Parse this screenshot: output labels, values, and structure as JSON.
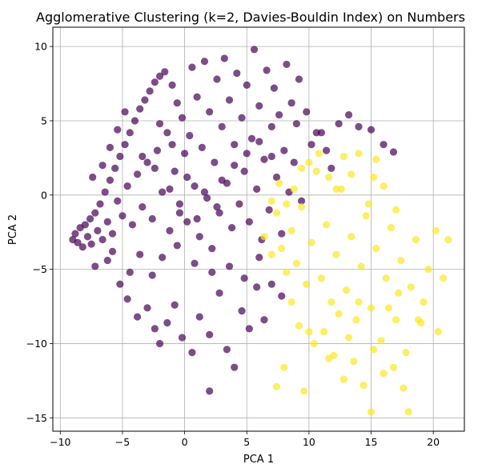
{
  "chart_data": {
    "type": "scatter",
    "title": "Agglomerative Clustering (k=2, Davies-Bouldin Index) on Numbers",
    "xlabel": "PCA 1",
    "ylabel": "PCA 2",
    "xlim": [
      -10.6,
      22.5
    ],
    "ylim": [
      -15.9,
      11.3
    ],
    "xticks": [
      -10,
      -5,
      0,
      5,
      10,
      15,
      20
    ],
    "xtick_labels": [
      "−10",
      "−5",
      "0",
      "5",
      "10",
      "15",
      "20"
    ],
    "yticks": [
      -15,
      -10,
      -5,
      0,
      5,
      10
    ],
    "ytick_labels": [
      "−15",
      "−10",
      "−5",
      "0",
      "5",
      "10"
    ],
    "grid": true,
    "legend": "none",
    "series": [
      {
        "cluster": 0,
        "color": "#440154",
        "opacity": 0.7,
        "points": [
          [
            -9,
            -3
          ],
          [
            -8.8,
            -2.6
          ],
          [
            -8.6,
            -3.2
          ],
          [
            -8.4,
            -2.2
          ],
          [
            -8.2,
            -3.5
          ],
          [
            -8,
            -2
          ],
          [
            -7.8,
            -2.8
          ],
          [
            -7.6,
            -1.6
          ],
          [
            -7.5,
            -3.3
          ],
          [
            -7.2,
            -1.2
          ],
          [
            -7,
            -2.4
          ],
          [
            -6.8,
            -0.6
          ],
          [
            -6.6,
            -3
          ],
          [
            -6.4,
            0.2
          ],
          [
            -6.2,
            -1.8
          ],
          [
            -6,
            1
          ],
          [
            -5.8,
            -2.6
          ],
          [
            -5.6,
            1.8
          ],
          [
            -5.4,
            -0.4
          ],
          [
            -5.2,
            2.6
          ],
          [
            -5,
            -1.4
          ],
          [
            -4.8,
            3.4
          ],
          [
            -4.6,
            0.6
          ],
          [
            -4.4,
            4.2
          ],
          [
            -4.2,
            -2
          ],
          [
            -4,
            5
          ],
          [
            -3.8,
            1.4
          ],
          [
            -3.6,
            5.8
          ],
          [
            -3.4,
            -0.8
          ],
          [
            -3.2,
            6.4
          ],
          [
            -3,
            2.2
          ],
          [
            -2.8,
            7
          ],
          [
            -2.6,
            -1.6
          ],
          [
            -2.4,
            7.6
          ],
          [
            -2.2,
            3
          ],
          [
            -2,
            8
          ],
          [
            -1.8,
            0.2
          ],
          [
            -1.6,
            8.3
          ],
          [
            -1.4,
            4.2
          ],
          [
            -1.2,
            -2.4
          ],
          [
            -1,
            7.4
          ],
          [
            -0.8,
            1.6
          ],
          [
            -0.6,
            6.2
          ],
          [
            -0.4,
            -0.6
          ],
          [
            -0.2,
            5.2
          ],
          [
            0,
            2.8
          ],
          [
            0.2,
            -1.8
          ],
          [
            0.4,
            4
          ],
          [
            0.6,
            8.6
          ],
          [
            0.8,
            0.6
          ],
          [
            1,
            6.6
          ],
          [
            1.2,
            -2.8
          ],
          [
            1.4,
            3.2
          ],
          [
            1.6,
            9
          ],
          [
            1.8,
            -0.2
          ],
          [
            2,
            5.6
          ],
          [
            2.2,
            -3.6
          ],
          [
            2.4,
            2.2
          ],
          [
            2.6,
            7.8
          ],
          [
            2.8,
            -1.2
          ],
          [
            3,
            4.6
          ],
          [
            3.2,
            9.2
          ],
          [
            3.4,
            0.8
          ],
          [
            3.6,
            6.4
          ],
          [
            3.8,
            -2.2
          ],
          [
            4,
            3.4
          ],
          [
            4.2,
            8.2
          ],
          [
            4.4,
            -0.6
          ],
          [
            4.6,
            5.2
          ],
          [
            4.8,
            1.6
          ],
          [
            5,
            7.4
          ],
          [
            5.2,
            -1.8
          ],
          [
            5.4,
            3.8
          ],
          [
            5.6,
            9.8
          ],
          [
            5.8,
            0.4
          ],
          [
            6,
            6
          ],
          [
            6.2,
            -3
          ],
          [
            6.4,
            2.4
          ],
          [
            6.6,
            8.4
          ],
          [
            6.8,
            -1
          ],
          [
            7,
            4.6
          ],
          [
            7.2,
            7.2
          ],
          [
            7.4,
            1.2
          ],
          [
            7.6,
            5.4
          ],
          [
            7.8,
            -2.6
          ],
          [
            8,
            3
          ],
          [
            8.2,
            8.8
          ],
          [
            8.4,
            0.2
          ],
          [
            8.6,
            6.2
          ],
          [
            8.8,
            2.2
          ],
          [
            9,
            4.8
          ],
          [
            9.2,
            7.8
          ],
          [
            9.4,
            -0.4
          ],
          [
            9.8,
            5.6
          ],
          [
            10.2,
            3.4
          ],
          [
            10.6,
            4.2
          ],
          [
            11,
            4.2
          ],
          [
            11.4,
            3
          ],
          [
            11.8,
            1.8
          ],
          [
            12.4,
            4.8
          ],
          [
            13.2,
            5.4
          ],
          [
            14,
            4.6
          ],
          [
            15,
            4.4
          ],
          [
            16,
            3.4
          ],
          [
            16.8,
            2.9
          ],
          [
            -5.2,
            -6
          ],
          [
            -4.6,
            -7
          ],
          [
            -3.8,
            -8.2
          ],
          [
            -3,
            -7.6
          ],
          [
            -2.4,
            -9
          ],
          [
            -2,
            -10
          ],
          [
            -1.4,
            -8.6
          ],
          [
            -0.8,
            -7.4
          ],
          [
            -0.2,
            -9.6
          ],
          [
            0.6,
            -10.6
          ],
          [
            1.2,
            -8.2
          ],
          [
            2,
            -9.4
          ],
          [
            2.8,
            -6.6
          ],
          [
            3.4,
            -10.4
          ],
          [
            4,
            -11.6
          ],
          [
            4.6,
            -7.8
          ],
          [
            5.2,
            -9
          ],
          [
            5.8,
            -6.2
          ],
          [
            6.4,
            -8.4
          ],
          [
            7,
            -6
          ],
          [
            7.8,
            -6.8
          ],
          [
            2,
            -13.2
          ],
          [
            -6.2,
            -4.4
          ],
          [
            -7.2,
            -4.8
          ],
          [
            -5.8,
            -3.8
          ],
          [
            -1.8,
            -4.2
          ],
          [
            -0.6,
            -3.4
          ],
          [
            0.8,
            -4.6
          ],
          [
            2.2,
            -5.2
          ],
          [
            3.6,
            -4.8
          ],
          [
            4.8,
            -5.6
          ],
          [
            6,
            -4.2
          ],
          [
            -2.6,
            -5.4
          ],
          [
            -3.6,
            -4
          ],
          [
            -4.4,
            -5.2
          ],
          [
            -6.6,
            2
          ],
          [
            -7.4,
            1.2
          ],
          [
            -6,
            3.2
          ],
          [
            -5.4,
            4.4
          ],
          [
            -4.8,
            5.6
          ],
          [
            -2,
            4.8
          ],
          [
            -1,
            3.4
          ],
          [
            0.2,
            1.2
          ],
          [
            1.6,
            0.2
          ],
          [
            2.6,
            -0.8
          ],
          [
            -3.4,
            2.6
          ],
          [
            -2.4,
            1.8
          ],
          [
            -1.2,
            0.4
          ],
          [
            -0.4,
            -1.2
          ],
          [
            1,
            -1.6
          ],
          [
            3,
            1
          ],
          [
            4,
            2
          ],
          [
            5,
            2.8
          ],
          [
            6,
            3.6
          ],
          [
            7,
            2.6
          ]
        ]
      },
      {
        "cluster": 1,
        "color": "#fde725",
        "opacity": 0.7,
        "points": [
          [
            6.4,
            -2.8
          ],
          [
            7,
            -4
          ],
          [
            7.4,
            -1.2
          ],
          [
            7.8,
            -3.6
          ],
          [
            8.2,
            -5.2
          ],
          [
            8.6,
            -2.4
          ],
          [
            9,
            -4.6
          ],
          [
            9.4,
            -0.8
          ],
          [
            9.8,
            -6
          ],
          [
            10.2,
            -3.2
          ],
          [
            10.6,
            1.6
          ],
          [
            11,
            -5.6
          ],
          [
            11.4,
            -2
          ],
          [
            11.8,
            -7.2
          ],
          [
            12.2,
            -4
          ],
          [
            12.6,
            0.4
          ],
          [
            13,
            -6.4
          ],
          [
            13.4,
            -2.8
          ],
          [
            13.8,
            -8.4
          ],
          [
            14.2,
            -4.8
          ],
          [
            14.6,
            -1.4
          ],
          [
            15,
            -7.6
          ],
          [
            15.4,
            -3.6
          ],
          [
            15.8,
            -9.8
          ],
          [
            16.2,
            -5.6
          ],
          [
            16.6,
            -2.2
          ],
          [
            17,
            -8.4
          ],
          [
            17.4,
            -4.4
          ],
          [
            17.8,
            -10.6
          ],
          [
            18.2,
            -6.2
          ],
          [
            18.6,
            -3
          ],
          [
            19,
            -8.6
          ],
          [
            19.6,
            -5
          ],
          [
            20.2,
            -2.4
          ],
          [
            20.8,
            -5.6
          ],
          [
            21.2,
            -3
          ],
          [
            11.2,
            -9.2
          ],
          [
            12,
            -10.8
          ],
          [
            12.8,
            -12.4
          ],
          [
            13.6,
            -11.2
          ],
          [
            14.4,
            -12.8
          ],
          [
            15.2,
            -10.4
          ],
          [
            16,
            -12
          ],
          [
            16.8,
            -11.6
          ],
          [
            17.6,
            -13
          ],
          [
            18,
            -14.6
          ],
          [
            15,
            -14.6
          ],
          [
            9.6,
            -13.2
          ],
          [
            8,
            -11.6
          ],
          [
            7.4,
            -12.9
          ],
          [
            10.4,
            -10
          ],
          [
            9.2,
            -8.8
          ],
          [
            8.6,
            -7.2
          ],
          [
            10,
            -9.2
          ],
          [
            11.6,
            -11
          ],
          [
            12.4,
            -8
          ],
          [
            13.2,
            -9.6
          ],
          [
            14,
            -7.2
          ],
          [
            16.4,
            -7.6
          ],
          [
            17.2,
            -6.6
          ],
          [
            18.8,
            -8.4
          ],
          [
            19.2,
            -7.2
          ],
          [
            20.4,
            -9.2
          ],
          [
            17,
            -1
          ],
          [
            16,
            0.6
          ],
          [
            15.2,
            1.2
          ],
          [
            14.8,
            -0.6
          ],
          [
            13.4,
            1.4
          ],
          [
            12.2,
            0.4
          ],
          [
            11.6,
            1.2
          ],
          [
            10,
            2.2
          ],
          [
            9.4,
            1.8
          ],
          [
            8.8,
            0.4
          ],
          [
            8.2,
            -0.6
          ],
          [
            7.6,
            0.8
          ],
          [
            7,
            -0.4
          ],
          [
            12.8,
            2.6
          ],
          [
            14,
            2.8
          ],
          [
            15.4,
            2.4
          ],
          [
            10.8,
            2.8
          ]
        ]
      }
    ]
  }
}
